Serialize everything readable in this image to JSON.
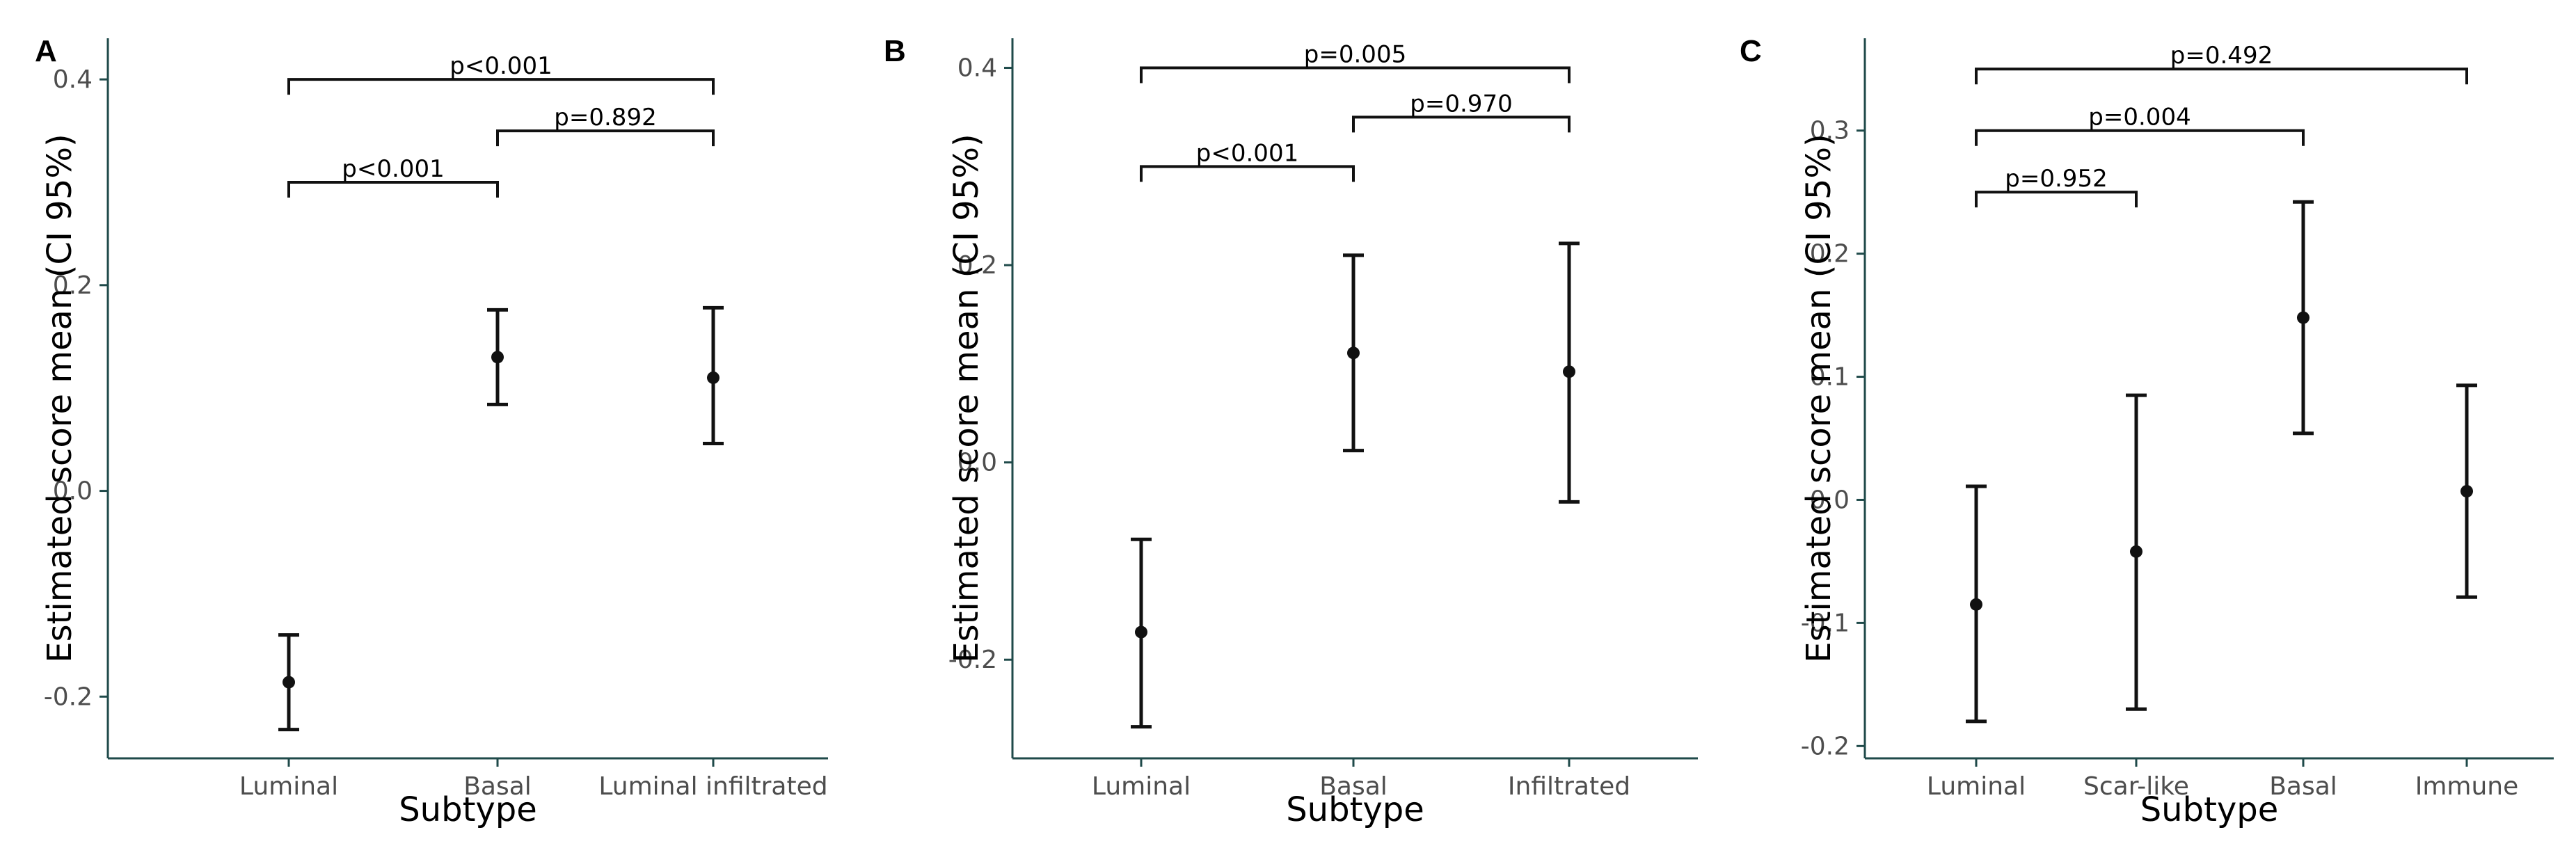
{
  "chart_data": [
    {
      "panel": "A",
      "type": "errorbar",
      "xlabel": "Subtype",
      "ylabel": "Estimated score mean (CI 95%)",
      "ylim": [
        -0.26,
        0.44
      ],
      "yticks": [
        -0.2,
        0.0,
        0.2,
        0.4
      ],
      "ytick_labels": [
        "-0.2",
        "0.0",
        "0.2",
        "0.4"
      ],
      "categories": [
        "Luminal",
        "Basal",
        "Luminal infiltrated"
      ],
      "means": [
        -0.186,
        0.13,
        0.11
      ],
      "lower": [
        -0.232,
        0.084,
        0.046
      ],
      "upper": [
        -0.14,
        0.176,
        0.178
      ],
      "comparisons": [
        {
          "from": 0,
          "to": 1,
          "y": 0.3,
          "label": "p<0.001"
        },
        {
          "from": 1,
          "to": 2,
          "y": 0.35,
          "label": "p=0.892"
        },
        {
          "from": 0,
          "to": 2,
          "y": 0.4,
          "label": "p<0.001"
        }
      ]
    },
    {
      "panel": "B",
      "type": "errorbar",
      "xlabel": "Subtype",
      "ylabel": "Estimated score mean (CI 95%)",
      "ylim": [
        -0.3,
        0.43
      ],
      "yticks": [
        -0.2,
        0.0,
        0.2,
        0.4
      ],
      "ytick_labels": [
        "-0.2",
        "0.0",
        "0.2",
        "0.4"
      ],
      "categories": [
        "Luminal",
        "Basal",
        "Infiltrated"
      ],
      "means": [
        -0.172,
        0.111,
        0.092
      ],
      "lower": [
        -0.268,
        0.012,
        -0.04
      ],
      "upper": [
        -0.078,
        0.21,
        0.222
      ],
      "comparisons": [
        {
          "from": 0,
          "to": 1,
          "y": 0.3,
          "label": "p<0.001"
        },
        {
          "from": 1,
          "to": 2,
          "y": 0.35,
          "label": "p=0.970"
        },
        {
          "from": 0,
          "to": 2,
          "y": 0.4,
          "label": "p=0.005"
        }
      ]
    },
    {
      "panel": "C",
      "type": "errorbar",
      "xlabel": "Subtype",
      "ylabel": "Estimated score mean (CI 95%)",
      "ylim": [
        -0.21,
        0.375
      ],
      "yticks": [
        -0.2,
        -0.1,
        0.0,
        0.1,
        0.2,
        0.3
      ],
      "ytick_labels": [
        "-0.2",
        "-0.1",
        "0.0",
        "0.1",
        "0.2",
        "0.3"
      ],
      "categories": [
        "Luminal",
        "Scar-like",
        "Basal",
        "Immune"
      ],
      "means": [
        -0.085,
        -0.042,
        0.148,
        0.007
      ],
      "lower": [
        -0.18,
        -0.17,
        0.054,
        -0.079
      ],
      "upper": [
        0.011,
        0.085,
        0.242,
        0.093
      ],
      "comparisons": [
        {
          "from": 0,
          "to": 1,
          "y": 0.25,
          "label": "p=0.952"
        },
        {
          "from": 0,
          "to": 2,
          "y": 0.3,
          "label": "p=0.004"
        },
        {
          "from": 0,
          "to": 3,
          "y": 0.35,
          "label": "p=0.492"
        }
      ]
    }
  ],
  "colors": {
    "axis": "#1f4a4a",
    "mark": "#111111",
    "tick_text": "#4d4d4d"
  }
}
